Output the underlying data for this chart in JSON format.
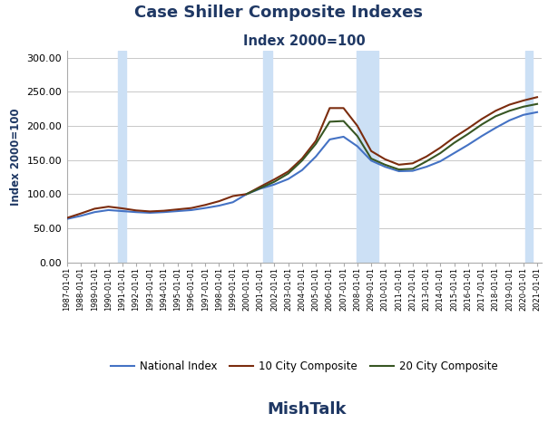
{
  "title": "Case Shiller Composite Indexes",
  "subtitle": "Index 2000=100",
  "xlabel": "MishTalk",
  "ylabel": "Index 2000=100",
  "ylim": [
    0,
    310
  ],
  "yticks": [
    0.0,
    50.0,
    100.0,
    150.0,
    200.0,
    250.0,
    300.0
  ],
  "title_color": "#1f3864",
  "subtitle_color": "#1f3864",
  "xlabel_color": "#1f3864",
  "ylabel_color": "#1f3864",
  "line_colors": {
    "national": "#4472c4",
    "ten_city": "#7b2c0e",
    "twenty_city": "#375623"
  },
  "recession_bands": [
    {
      "start": 1990.67,
      "end": 1991.25
    },
    {
      "start": 2001.17,
      "end": 2001.83
    },
    {
      "start": 2007.92,
      "end": 2009.5
    },
    {
      "start": 2020.17,
      "end": 2020.67
    }
  ],
  "recession_color": "#cce0f5",
  "recession_alpha": 1.0,
  "years": [
    1987,
    1988,
    1989,
    1990,
    1991,
    1992,
    1993,
    1994,
    1995,
    1996,
    1997,
    1998,
    1999,
    2000,
    2001,
    2002,
    2003,
    2004,
    2005,
    2006,
    2007,
    2008,
    2009,
    2010,
    2011,
    2012,
    2013,
    2014,
    2015,
    2016,
    2017,
    2018,
    2019,
    2020,
    2021
  ],
  "national_index": [
    63.5,
    68.0,
    73.5,
    76.5,
    75.0,
    73.5,
    72.5,
    73.5,
    75.0,
    76.5,
    79.5,
    83.0,
    88.0,
    100.0,
    108.0,
    114.0,
    122.0,
    135.0,
    155.0,
    180.0,
    184.0,
    170.0,
    149.0,
    140.0,
    133.5,
    134.0,
    140.0,
    148.0,
    160.0,
    172.0,
    185.0,
    197.0,
    208.0,
    216.0,
    220.0
  ],
  "ten_city": [
    65.0,
    71.5,
    78.5,
    81.5,
    79.0,
    76.0,
    74.5,
    75.5,
    77.5,
    79.5,
    84.0,
    89.5,
    97.0,
    100.0,
    111.0,
    121.5,
    133.0,
    152.0,
    178.0,
    226.0,
    226.0,
    200.0,
    163.0,
    151.0,
    143.0,
    145.0,
    155.0,
    168.0,
    183.0,
    196.0,
    210.0,
    222.0,
    231.0,
    237.0,
    242.0
  ],
  "twenty_city": [
    null,
    null,
    null,
    null,
    null,
    null,
    null,
    null,
    null,
    null,
    null,
    null,
    null,
    100.0,
    109.0,
    118.0,
    130.0,
    149.0,
    173.5,
    206.0,
    207.0,
    185.0,
    152.0,
    143.0,
    136.0,
    137.0,
    148.0,
    160.0,
    175.0,
    188.0,
    202.0,
    214.0,
    222.0,
    228.0,
    232.0
  ],
  "grid_color": "#c8c8c8",
  "background_color": "#ffffff",
  "line_width": 1.5,
  "xlim_start": 1987,
  "xlim_end": 2021.3,
  "xtick_start": 1987,
  "xtick_end": 2022
}
